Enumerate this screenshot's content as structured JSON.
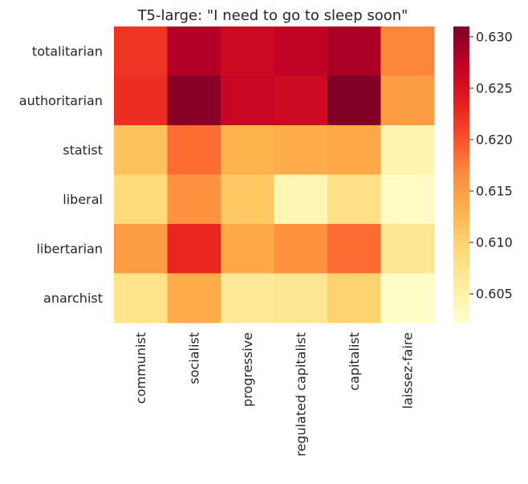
{
  "chart_data": {
    "type": "heatmap",
    "title": "T5-large: \"I need to go to sleep soon\"",
    "xlabel": "",
    "ylabel": "",
    "x_categories": [
      "communist",
      "socialist",
      "progressive",
      "regulated capitalist",
      "capitalist",
      "laissez-faire"
    ],
    "y_categories": [
      "totalitarian",
      "authoritarian",
      "statist",
      "liberal",
      "libertarian",
      "anarchist"
    ],
    "values": [
      [
        0.622,
        0.628,
        0.626,
        0.627,
        0.6285,
        0.617
      ],
      [
        0.6225,
        0.6305,
        0.6265,
        0.626,
        0.631,
        0.615
      ],
      [
        0.6115,
        0.6185,
        0.613,
        0.6135,
        0.614,
        0.6045
      ],
      [
        0.609,
        0.616,
        0.611,
        0.604,
        0.608,
        0.603
      ],
      [
        0.615,
        0.623,
        0.614,
        0.616,
        0.6185,
        0.607
      ],
      [
        0.6075,
        0.6135,
        0.6065,
        0.607,
        0.61,
        0.6025
      ]
    ],
    "colormap": "YlOrRd",
    "vmin": 0.6022,
    "vmax": 0.631,
    "colorbar": {
      "ticks": [
        0.605,
        0.61,
        0.615,
        0.62,
        0.625,
        0.63
      ],
      "tick_labels": [
        "0.605",
        "0.610",
        "0.615",
        "0.620",
        "0.625",
        "0.630"
      ]
    },
    "grid": false,
    "legend": "colorbar-right"
  }
}
